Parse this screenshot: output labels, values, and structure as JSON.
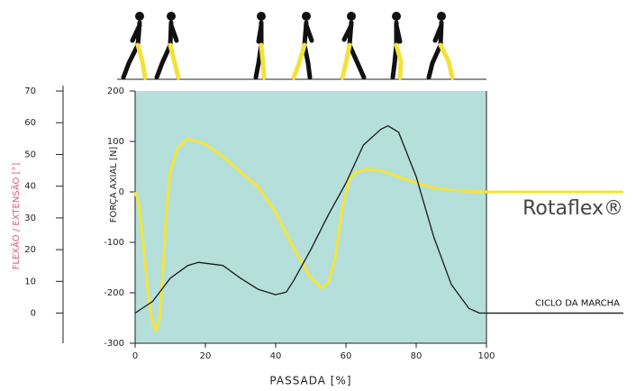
{
  "chart_data": {
    "type": "line",
    "xlabel": "PASSADA [%]",
    "ylabel": "FLEXÃO / EXTENSÃO [°]",
    "y2label": "FORÇA AXIAL [N]",
    "xlim": [
      0,
      100
    ],
    "xticks": [
      0,
      20,
      40,
      60,
      80,
      100
    ],
    "ylim": [
      -9.5,
      70
    ],
    "yticks": [
      0,
      10,
      20,
      30,
      40,
      50,
      60,
      70
    ],
    "y2lim": [
      -300,
      200
    ],
    "y2ticks": [
      -300,
      -200,
      -100,
      0,
      100,
      200
    ],
    "background": "#b5dfdb",
    "series": [
      {
        "name": "Rotaflex®",
        "color": "#f5e53a",
        "axis": "y2",
        "x": [
          0,
          1,
          1.5,
          3,
          4,
          5,
          6,
          7,
          8,
          9,
          10,
          12,
          15,
          20,
          25,
          30,
          35,
          40,
          45,
          50,
          53,
          55,
          57,
          59,
          61,
          63,
          66,
          70,
          75,
          80,
          85,
          90,
          95,
          100
        ],
        "values": [
          0,
          -20,
          -50,
          -150,
          -220,
          -260,
          -275,
          -250,
          -150,
          -30,
          40,
          85,
          105,
          95,
          70,
          40,
          10,
          -40,
          -110,
          -170,
          -190,
          -180,
          -130,
          -30,
          25,
          40,
          45,
          42,
          30,
          18,
          8,
          3,
          1,
          0
        ]
      },
      {
        "name": "CICLO DA MARCHA",
        "color": "#1a1a1a",
        "axis": "y",
        "x": [
          0,
          5,
          10,
          15,
          18,
          25,
          30,
          35,
          40,
          43,
          45,
          50,
          55,
          60,
          65,
          70,
          72,
          75,
          80,
          85,
          90,
          95,
          98,
          100
        ],
        "values": [
          0,
          3.7,
          11,
          15,
          16,
          15,
          11,
          7.5,
          5.8,
          6.6,
          10,
          20,
          31,
          41,
          53,
          58,
          59,
          57,
          43,
          24,
          9,
          1.5,
          0,
          0
        ]
      }
    ]
  }
}
